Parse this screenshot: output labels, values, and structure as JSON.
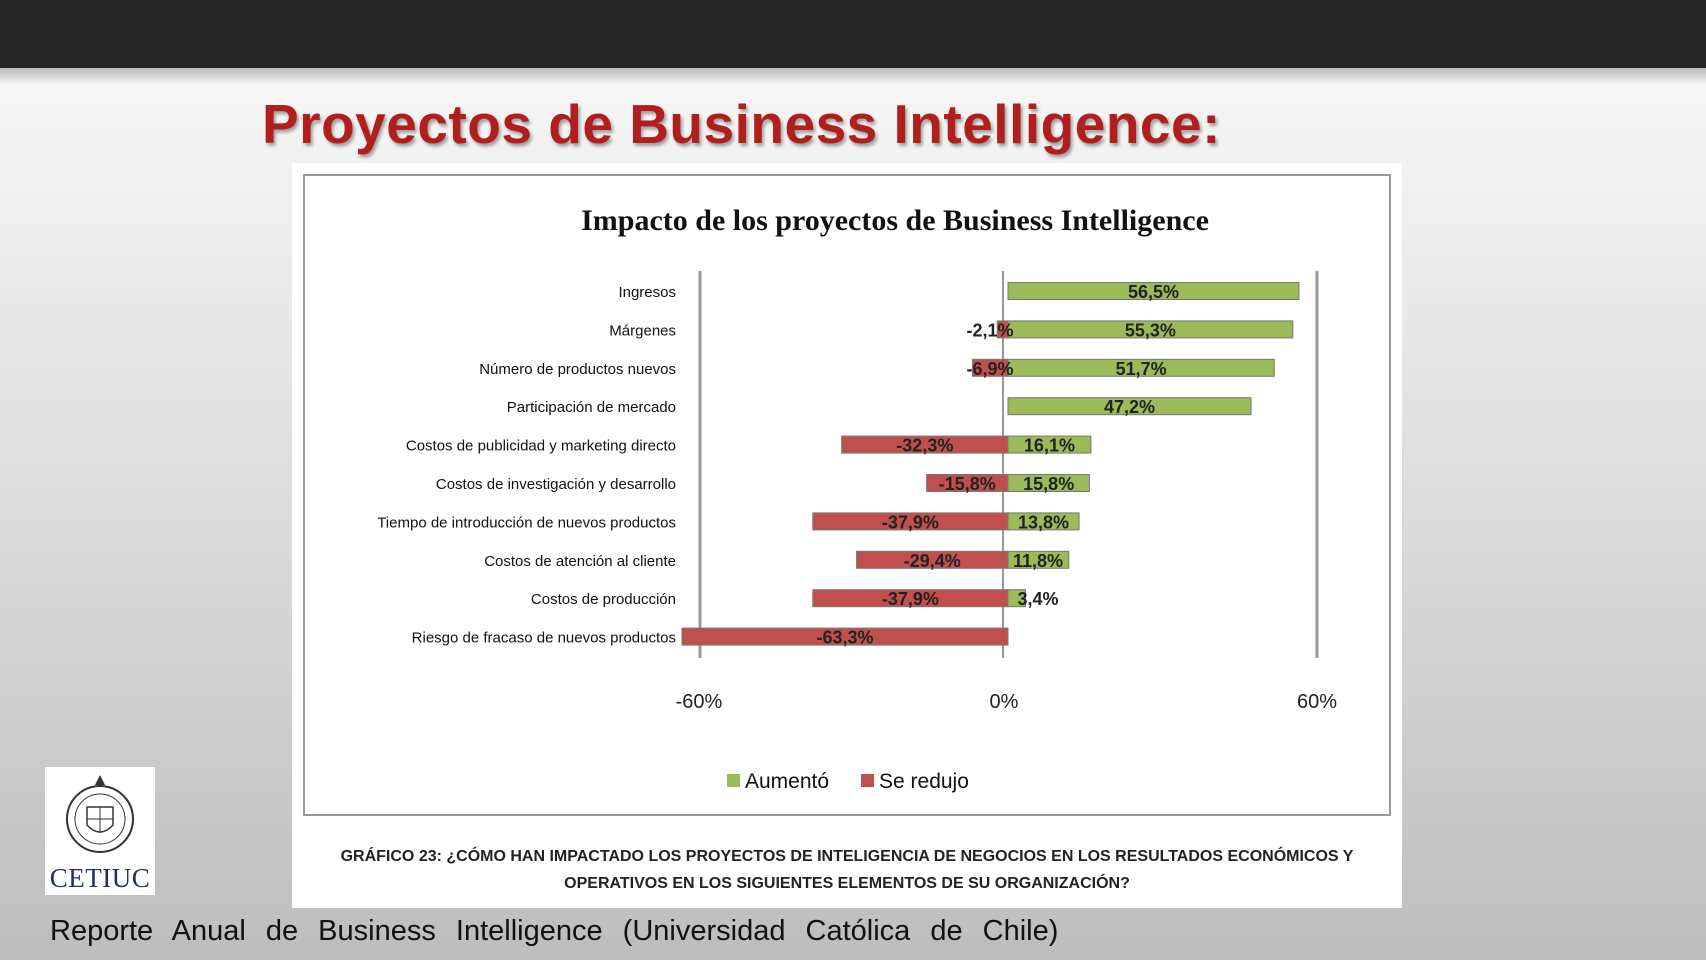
{
  "slide": {
    "title": "Proyectos de Business Intelligence:",
    "source": "Reporte Anual de Business Intelligence (Universidad Católica de Chile)",
    "logo_text": "CETIUC",
    "caption_line1": "GRÁFICO 23: ¿CÓMO HAN IMPACTADO LOS PROYECTOS DE INTELIGENCIA DE NEGOCIOS EN LOS RESULTADOS ECONÓMICOS Y",
    "caption_line2": "OPERATIVOS EN LOS SIGUIENTES ELEMENTOS DE SU ORGANIZACIÓN?"
  },
  "colors": {
    "title_red": "#b01e1e",
    "increase_green": "#9bbb59",
    "decrease_red": "#c0504d",
    "top_bar": "#262626"
  },
  "chart_data": {
    "type": "bar",
    "orientation": "horizontal",
    "stacked": "diverging",
    "title": "Impacto de los proyectos de Business Intelligence",
    "categories": [
      "Ingresos",
      "Márgenes",
      "Número de productos nuevos",
      "Participación de mercado",
      "Costos de publicidad y marketing directo",
      "Costos de investigación y desarrollo",
      "Tiempo de introducción de nuevos productos",
      "Costos de atención al cliente",
      "Costos de producción",
      "Riesgo de fracaso de nuevos productos"
    ],
    "series": [
      {
        "name": "Aumentó",
        "color": "#9bbb59",
        "values": [
          56.5,
          55.3,
          51.7,
          47.2,
          16.1,
          15.8,
          13.8,
          11.8,
          3.4,
          null
        ],
        "labels": [
          "56,5%",
          "55,3%",
          "51,7%",
          "47,2%",
          "16,1%",
          "15,8%",
          "13,8%",
          "11,8%",
          "3,4%",
          ""
        ]
      },
      {
        "name": "Se redujo",
        "color": "#c0504d",
        "values": [
          null,
          -2.1,
          -6.9,
          null,
          -32.3,
          -15.8,
          -37.9,
          -29.4,
          -37.9,
          -63.3
        ],
        "labels": [
          "",
          "-2,1%",
          "-6,9%",
          "",
          "-32,3%",
          "-15,8%",
          "-37,9%",
          "-29,4%",
          "-37,9%",
          "-63,3%"
        ]
      }
    ],
    "xlim": [
      -60,
      60
    ],
    "xticks": [
      "-60%",
      "0%",
      "60%"
    ],
    "grid": false,
    "legend_position": "bottom"
  }
}
